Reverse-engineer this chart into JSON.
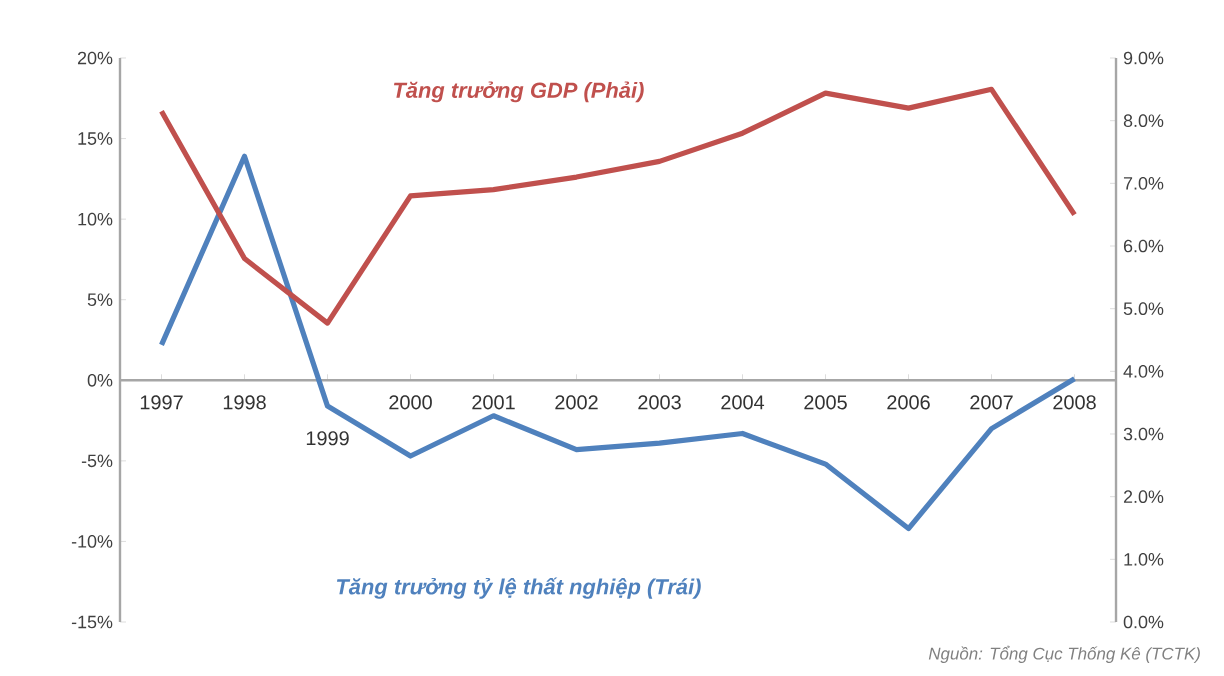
{
  "chart_data": {
    "type": "line",
    "categories": [
      "1997",
      "1998",
      "1999",
      "2000",
      "2001",
      "2002",
      "2003",
      "2004",
      "2005",
      "2006",
      "2007",
      "2008"
    ],
    "series": [
      {
        "name": "Tăng trưởng tỷ lệ thất nghiệp (Trái)",
        "color": "#4f81bd",
        "values": [
          2.2,
          13.9,
          -1.6,
          -4.7,
          -2.2,
          -4.3,
          -3.9,
          -3.3,
          -5.2,
          -9.2,
          -3.0,
          0.1
        ]
      },
      {
        "name": "Tăng trưởng GDP (Phải)",
        "color": "#c0504d",
        "axis": "y2",
        "values": [
          8.15,
          5.8,
          4.77,
          6.8,
          6.9,
          7.1,
          7.35,
          7.8,
          8.44,
          8.2,
          8.5,
          6.5
        ]
      }
    ],
    "ylim": [
      -15,
      20
    ],
    "yticks": [
      {
        "value": -15,
        "label": "-15%"
      },
      {
        "value": -10,
        "label": "-10%"
      },
      {
        "value": -5,
        "label": "-5%"
      },
      {
        "value": 0,
        "label": "0%"
      },
      {
        "value": 5,
        "label": "5%"
      },
      {
        "value": 10,
        "label": "10%"
      },
      {
        "value": 15,
        "label": "15%"
      },
      {
        "value": 20,
        "label": "20%"
      }
    ],
    "y2lim": [
      0,
      9
    ],
    "y2ticks": [
      {
        "value": 0,
        "label": "0.0%"
      },
      {
        "value": 1,
        "label": "1.0%"
      },
      {
        "value": 2,
        "label": "2.0%"
      },
      {
        "value": 3,
        "label": "3.0%"
      },
      {
        "value": 4,
        "label": "4.0%"
      },
      {
        "value": 5,
        "label": "5.0%"
      },
      {
        "value": 6,
        "label": "6.0%"
      },
      {
        "value": 7,
        "label": "7.0%"
      },
      {
        "value": 8,
        "label": "8.0%"
      },
      {
        "value": 9,
        "label": "9.0%"
      }
    ],
    "grid": false,
    "marker": "none",
    "line_style": "solid",
    "annotations": [
      "Nguồn: Tổng Cục Thống Kê (TCTK)"
    ]
  }
}
